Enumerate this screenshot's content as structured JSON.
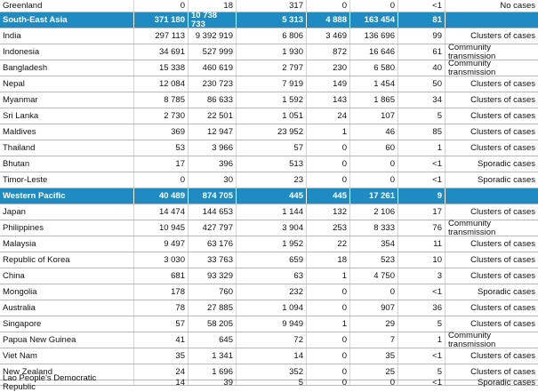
{
  "table": {
    "rows_before": [
      [
        "Greenland",
        "0",
        "18",
        "317",
        "0",
        "0",
        "<1",
        "No cases"
      ]
    ],
    "regions": [
      {
        "summary": [
          "South-East Asia",
          "371 180",
          "10 738 733",
          "5 313",
          "4 888",
          "163 454",
          "81",
          ""
        ],
        "countries": [
          [
            "India",
            "297 113",
            "9 392 919",
            "6 806",
            "3 469",
            "136 696",
            "99",
            "Clusters of cases"
          ],
          [
            "Indonesia",
            "34 691",
            "527 999",
            "1 930",
            "872",
            "16 646",
            "61",
            "Community transmission"
          ],
          [
            "Bangladesh",
            "15 338",
            "460 619",
            "2 797",
            "230",
            "6 580",
            "40",
            "Community transmission"
          ],
          [
            "Nepal",
            "12 084",
            "230 723",
            "7 919",
            "149",
            "1 454",
            "50",
            "Clusters of cases"
          ],
          [
            "Myanmar",
            "8 785",
            "86 633",
            "1 592",
            "143",
            "1 865",
            "34",
            "Clusters of cases"
          ],
          [
            "Sri Lanka",
            "2 730",
            "22 501",
            "1 051",
            "24",
            "107",
            "5",
            "Clusters of cases"
          ],
          [
            "Maldives",
            "369",
            "12 947",
            "23 952",
            "1",
            "46",
            "85",
            "Clusters of cases"
          ],
          [
            "Thailand",
            "53",
            "3 966",
            "57",
            "0",
            "60",
            "1",
            "Clusters of cases"
          ],
          [
            "Bhutan",
            "17",
            "396",
            "513",
            "0",
            "0",
            "<1",
            "Sporadic cases"
          ],
          [
            "Timor-Leste",
            "0",
            "30",
            "23",
            "0",
            "0",
            "<1",
            "Sporadic cases"
          ]
        ]
      },
      {
        "summary": [
          "Western Pacific",
          "40 489",
          "874 705",
          "445",
          "445",
          "17 261",
          "9",
          ""
        ],
        "countries": [
          [
            "Japan",
            "14 474",
            "144 653",
            "1 144",
            "132",
            "2 106",
            "17",
            "Clusters of cases"
          ],
          [
            "Philippines",
            "10 945",
            "427 797",
            "3 904",
            "253",
            "8 333",
            "76",
            "Community transmission"
          ],
          [
            "Malaysia",
            "9 497",
            "63 176",
            "1 952",
            "22",
            "354",
            "11",
            "Clusters of cases"
          ],
          [
            "Republic of Korea",
            "3 030",
            "33 763",
            "659",
            "18",
            "523",
            "10",
            "Clusters of cases"
          ],
          [
            "China",
            "681",
            "93 329",
            "63",
            "1",
            "4 750",
            "3",
            "Clusters of cases"
          ],
          [
            "Mongolia",
            "178",
            "760",
            "232",
            "0",
            "0",
            "<1",
            "Sporadic cases"
          ],
          [
            "Australia",
            "78",
            "27 885",
            "1 094",
            "0",
            "907",
            "36",
            "Clusters of cases"
          ],
          [
            "Singapore",
            "57",
            "58 205",
            "9 949",
            "1",
            "29",
            "5",
            "Clusters of cases"
          ],
          [
            "Papua New Guinea",
            "41",
            "645",
            "72",
            "0",
            "7",
            "1",
            "Community transmission"
          ],
          [
            "Viet Nam",
            "35",
            "1 341",
            "14",
            "0",
            "35",
            "<1",
            "Clusters of cases"
          ],
          [
            "New Zealand",
            "24",
            "1 696",
            "352",
            "0",
            "25",
            "5",
            "Clusters of cases"
          ],
          [
            "Lao People's Democratic Republic",
            "14",
            "39",
            "5",
            "0",
            "0",
            "<1",
            "Sporadic cases"
          ]
        ]
      }
    ]
  }
}
